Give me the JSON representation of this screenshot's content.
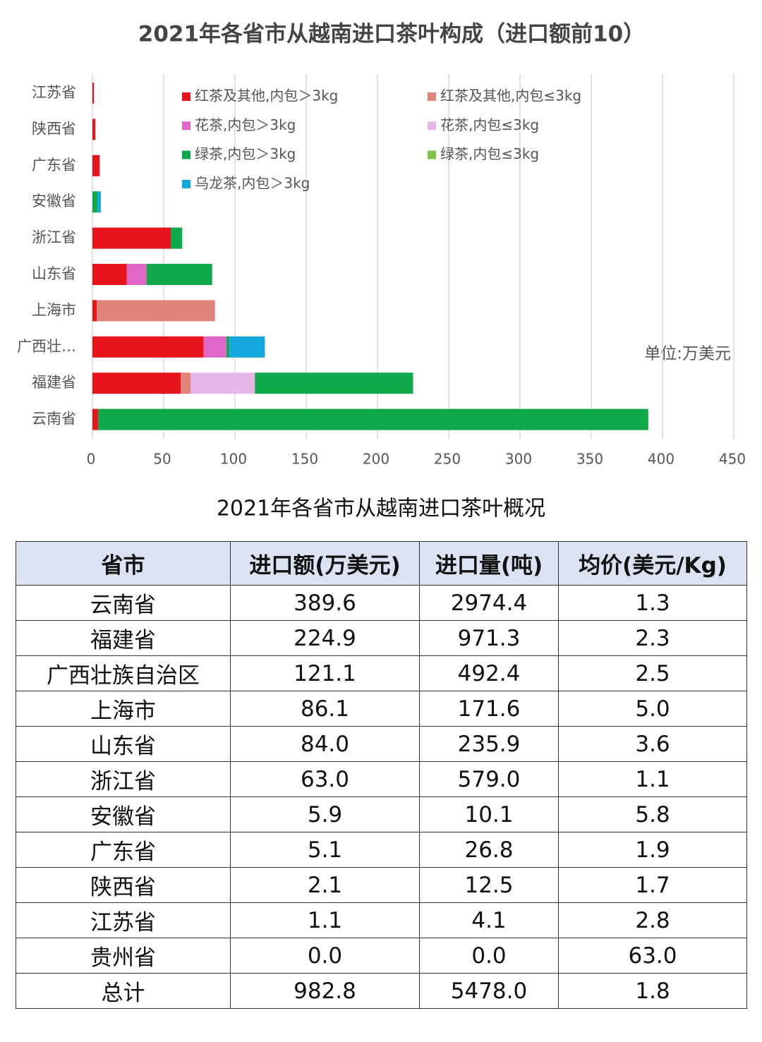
{
  "chart_data": {
    "type": "stacked-barh",
    "title": "2021年各省市从越南进口茶叶构成（进口额前10）",
    "annotation": "单位:万美元",
    "categories": [
      "江苏省",
      "陕西省",
      "广东省",
      "安徽省",
      "浙江省",
      "山东省",
      "上海市",
      "广西壮…",
      "福建省",
      "云南省"
    ],
    "series": [
      {
        "name": "红茶及其他,内包＞3kg",
        "color": "#e8141c",
        "values": [
          1.1,
          2.1,
          5.1,
          0,
          55,
          24,
          3,
          78,
          62,
          4
        ]
      },
      {
        "name": "红茶及其他,内包≤3kg",
        "color": "#e0837a",
        "values": [
          0,
          0,
          0,
          0,
          0,
          0,
          83,
          0,
          7,
          0
        ]
      },
      {
        "name": "花茶,内包＞3kg",
        "color": "#e066c8",
        "values": [
          0,
          0,
          0,
          0,
          0,
          14,
          0,
          16,
          0,
          0
        ]
      },
      {
        "name": "花茶,内包≤3kg",
        "color": "#e8b6e8",
        "values": [
          0,
          0,
          0,
          0,
          0,
          0,
          0,
          0,
          45,
          0
        ]
      },
      {
        "name": "绿茶,内包＞3kg",
        "color": "#0fa84a",
        "values": [
          0,
          0,
          0,
          3.5,
          8,
          46,
          0,
          2,
          111,
          386
        ]
      },
      {
        "name": "绿茶,内包≤3kg",
        "color": "#7dc64a",
        "values": [
          0,
          0,
          0,
          0,
          0,
          0,
          0,
          0,
          0,
          0
        ]
      },
      {
        "name": "乌龙茶,内包＞3kg",
        "color": "#14a8dc",
        "values": [
          0,
          0,
          0,
          2.4,
          0,
          0,
          0,
          25,
          0,
          0
        ]
      }
    ],
    "xlim": [
      0,
      450
    ],
    "xticks": [
      0,
      50,
      100,
      150,
      200,
      250,
      300,
      350,
      400,
      450
    ],
    "grid": true
  },
  "table": {
    "title": "2021年各省市从越南进口茶叶概况",
    "header": [
      "省市",
      "进口额(万美元)",
      "进口量(吨)",
      "均价(美元/Kg)"
    ],
    "rows": [
      [
        "云南省",
        "389.6",
        "2974.4",
        "1.3"
      ],
      [
        "福建省",
        "224.9",
        "971.3",
        "2.3"
      ],
      [
        "广西壮族自治区",
        "121.1",
        "492.4",
        "2.5"
      ],
      [
        "上海市",
        "86.1",
        "171.6",
        "5.0"
      ],
      [
        "山东省",
        "84.0",
        "235.9",
        "3.6"
      ],
      [
        "浙江省",
        "63.0",
        "579.0",
        "1.1"
      ],
      [
        "安徽省",
        "5.9",
        "10.1",
        "5.8"
      ],
      [
        "广东省",
        "5.1",
        "26.8",
        "1.9"
      ],
      [
        "陕西省",
        "2.1",
        "12.5",
        "1.7"
      ],
      [
        "江苏省",
        "1.1",
        "4.1",
        "2.8"
      ],
      [
        "贵州省",
        "0.0",
        "0.0",
        "63.0"
      ],
      [
        "总计",
        "982.8",
        "5478.0",
        "1.8"
      ]
    ]
  }
}
